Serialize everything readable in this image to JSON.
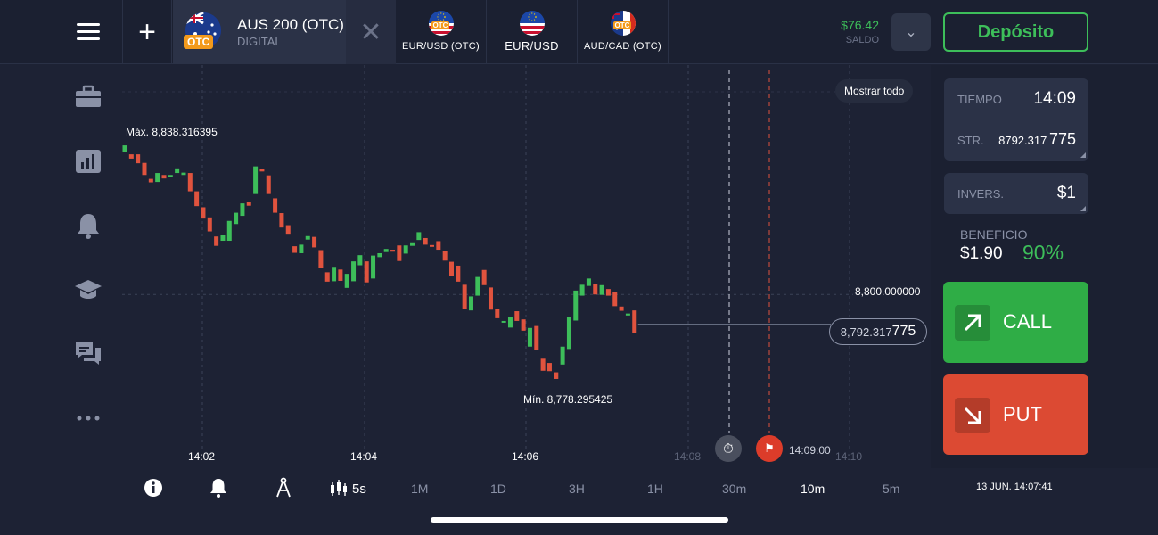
{
  "header": {
    "active_asset": {
      "name": "AUS 200 (OTC)",
      "type": "DIGITAL",
      "badge": "OTC"
    },
    "tabs": [
      {
        "label": "EUR/USD (OTC)",
        "badge": "OTC"
      },
      {
        "label": "EUR/USD",
        "badge": ""
      },
      {
        "label": "AUD/CAD (OTC)",
        "badge": "OTC"
      }
    ],
    "balance": {
      "amount": "$76.42",
      "caption": "SALDO"
    },
    "deposit_label": "Depósito"
  },
  "sidebar": {
    "items": [
      {
        "icon": "briefcase-icon"
      },
      {
        "icon": "chart-icon"
      },
      {
        "icon": "bell-icon"
      },
      {
        "icon": "graduation-cap-icon"
      },
      {
        "icon": "chat-icon"
      },
      {
        "icon": "more-icon"
      }
    ]
  },
  "chart": {
    "show_all_label": "Mostrar todo",
    "max_label": "Máx. 8,838.316395",
    "min_label": "Mín. 8,778.295425",
    "level_label": "8,800.000000",
    "current_price_main": "8,792.317",
    "current_price_tail": "775",
    "expiry_time": "14:09:00",
    "time_labels": [
      "14:02",
      "14:04",
      "14:06",
      "14:08",
      "14:10"
    ]
  },
  "chart_data": {
    "type": "candlestick",
    "x_ticks": [
      "14:02",
      "14:04",
      "14:06",
      "14:08",
      "14:10"
    ],
    "max_value": 8838.316395,
    "min_value": 8778.295425,
    "level": 8800.0,
    "current_price": 8792.317775,
    "expiry": "14:09:00",
    "candles": [
      {
        "o": 8836.6,
        "c": 8838.3
      },
      {
        "o": 8836.0,
        "c": 8834.9
      },
      {
        "o": 8836.0,
        "c": 8833.7
      },
      {
        "o": 8833.8,
        "c": 8830.7
      },
      {
        "o": 8829.7,
        "c": 8828.8
      },
      {
        "o": 8828.9,
        "c": 8831.2
      },
      {
        "o": 8830.7,
        "c": 8829.8
      },
      {
        "o": 8830.2,
        "c": 8830.7
      },
      {
        "o": 8831.2,
        "c": 8832.4
      },
      {
        "o": 8830.7,
        "c": 8831.3
      },
      {
        "o": 8831.2,
        "c": 8826.5
      },
      {
        "o": 8826.5,
        "c": 8822.7
      },
      {
        "o": 8822.4,
        "c": 8819.5
      },
      {
        "o": 8819.8,
        "c": 8816.2
      },
      {
        "o": 8814.9,
        "c": 8812.5
      },
      {
        "o": 8813.8,
        "c": 8815.2
      },
      {
        "o": 8813.8,
        "c": 8818.9
      },
      {
        "o": 8818.1,
        "c": 8821.0
      },
      {
        "o": 8820.2,
        "c": 8823.4
      },
      {
        "o": 8823.7,
        "c": 8822.8
      },
      {
        "o": 8825.8,
        "c": 8832.9
      },
      {
        "o": 8832.3,
        "c": 8831.6
      },
      {
        "o": 8830.6,
        "c": 8825.8
      },
      {
        "o": 8824.7,
        "c": 8821.0
      },
      {
        "o": 8820.9,
        "c": 8817.2
      },
      {
        "o": 8817.8,
        "c": 8815.6
      },
      {
        "o": 8812.4,
        "c": 8810.7
      },
      {
        "o": 8810.6,
        "c": 8812.8
      },
      {
        "o": 8814.1,
        "c": 8815.0
      },
      {
        "o": 8814.8,
        "c": 8812.1
      },
      {
        "o": 8811.4,
        "c": 8806.7
      },
      {
        "o": 8805.7,
        "c": 8803.3
      },
      {
        "o": 8803.4,
        "c": 8807.1
      },
      {
        "o": 8806.4,
        "c": 8803.5
      },
      {
        "o": 8801.7,
        "c": 8805.3
      },
      {
        "o": 8803.4,
        "c": 8808.5
      },
      {
        "o": 8807.5,
        "c": 8810.1
      },
      {
        "o": 8808.5,
        "c": 8803.1
      },
      {
        "o": 8804.1,
        "c": 8810.0
      },
      {
        "o": 8809.6,
        "c": 8810.6
      },
      {
        "o": 8810.9,
        "c": 8811.7
      },
      {
        "o": 8811.5,
        "c": 8811.0
      },
      {
        "o": 8812.6,
        "c": 8808.6
      },
      {
        "o": 8810.5,
        "c": 8812.6
      },
      {
        "o": 8812.5,
        "c": 8813.4
      },
      {
        "o": 8814.0,
        "c": 8816.0
      },
      {
        "o": 8814.5,
        "c": 8812.8
      },
      {
        "o": 8812.7,
        "c": 8812.3
      },
      {
        "o": 8813.7,
        "c": 8811.5
      },
      {
        "o": 8811.2,
        "c": 8808.7
      },
      {
        "o": 8808.4,
        "c": 8804.8
      },
      {
        "o": 8807.4,
        "c": 8803.3
      },
      {
        "o": 8802.5,
        "c": 8796.3
      },
      {
        "o": 8795.9,
        "c": 8799.5
      },
      {
        "o": 8799.7,
        "c": 8804.5
      },
      {
        "o": 8806.3,
        "c": 8802.4
      },
      {
        "o": 8801.8,
        "c": 8796.1
      },
      {
        "o": 8796.2,
        "c": 8793.9
      },
      {
        "o": 8793.0,
        "c": 8793.2
      },
      {
        "o": 8791.5,
        "c": 8794.1
      },
      {
        "o": 8795.7,
        "c": 8793.2
      },
      {
        "o": 8793.6,
        "c": 8790.7
      },
      {
        "o": 8786.6,
        "c": 8791.4
      },
      {
        "o": 8791.9,
        "c": 8785.7
      },
      {
        "o": 8783.5,
        "c": 8780.4
      },
      {
        "o": 8782.4,
        "c": 8780.3
      },
      {
        "o": 8780.0,
        "c": 8778.3
      },
      {
        "o": 8782.0,
        "c": 8786.6
      },
      {
        "o": 8786.0,
        "c": 8794.1
      },
      {
        "o": 8793.3,
        "c": 8801.0
      },
      {
        "o": 8799.7,
        "c": 8802.5
      },
      {
        "o": 8802.2,
        "c": 8804.1
      },
      {
        "o": 8802.7,
        "c": 8800.0
      },
      {
        "o": 8799.9,
        "c": 8802.4
      },
      {
        "o": 8801.4,
        "c": 8799.7
      },
      {
        "o": 8800.6,
        "c": 8797.0
      },
      {
        "o": 8796.9,
        "c": 8795.8
      },
      {
        "o": 8794.6,
        "c": 8795.1
      },
      {
        "o": 8795.9,
        "c": 8790.2
      }
    ]
  },
  "panel": {
    "time": {
      "caption": "TIEMPO",
      "value": "14:09"
    },
    "strike": {
      "caption": "STR.",
      "value_main": "8792.317",
      "value_tail": "775"
    },
    "investment": {
      "caption": "INVERS.",
      "value": "$1"
    },
    "profit": {
      "caption": "BENEFICIO",
      "amount": "$1.90",
      "percent": "90%"
    },
    "call_label": "CALL",
    "put_label": "PUT"
  },
  "toolbar": {
    "candle_interval": "5s",
    "timeframes": [
      "1M",
      "1D",
      "3H",
      "1H",
      "30m",
      "10m",
      "5m"
    ],
    "active_timeframe": "10m",
    "clock": "13 JUN. 14:07:41"
  },
  "colors": {
    "background": "#1d2234",
    "bullish": "#3dbe5a",
    "bearish": "#e0533e",
    "call": "#2fad46",
    "put": "#dc4a33",
    "otc_badge": "#f39a1c"
  }
}
